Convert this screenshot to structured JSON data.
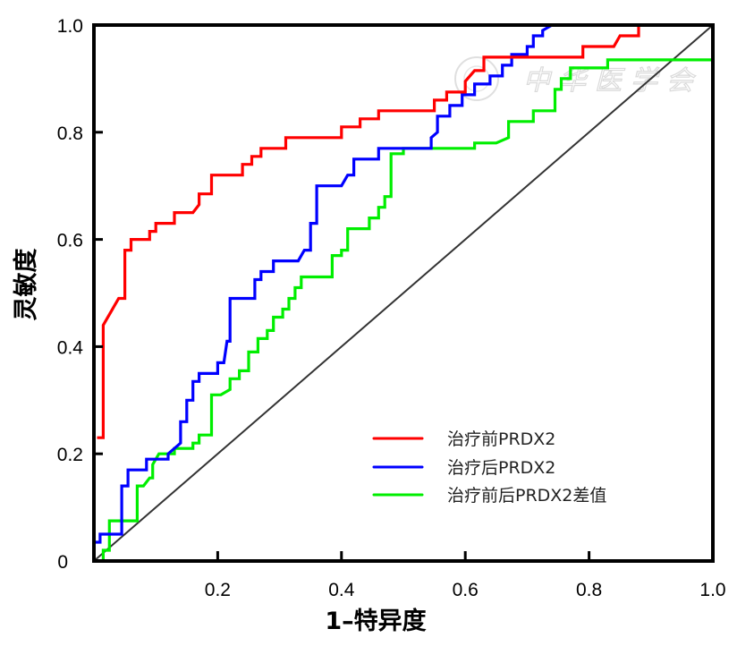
{
  "chart_data": {
    "type": "line",
    "title": "",
    "xlabel": "1–特异度",
    "ylabel": "灵敏度",
    "xlim": [
      0,
      1.0
    ],
    "ylim": [
      0,
      1.0
    ],
    "x_ticks": [
      {
        "value": 0.2,
        "label": "0.2"
      },
      {
        "value": 0.4,
        "label": "0.4"
      },
      {
        "value": 0.6,
        "label": "0.6"
      },
      {
        "value": 0.8,
        "label": "0.8"
      },
      {
        "value": 1.0,
        "label": "1.0"
      }
    ],
    "y_ticks": [
      {
        "value": 0,
        "label": "0"
      },
      {
        "value": 0.2,
        "label": "0.2"
      },
      {
        "value": 0.4,
        "label": "0.4"
      },
      {
        "value": 0.6,
        "label": "0.6"
      },
      {
        "value": 0.8,
        "label": "0.8"
      },
      {
        "value": 1.0,
        "label": "1.0"
      }
    ],
    "grid": false,
    "legend_position": "bottom-right",
    "watermark": "中华医学会",
    "reference_line": {
      "name": "diagonal",
      "color": "#333333",
      "points": [
        [
          0,
          0
        ],
        [
          1.0,
          1.0
        ]
      ]
    },
    "series": [
      {
        "name": "治疗前PRDX2",
        "color": "#ff0000",
        "points": [
          [
            0.005,
            0.23
          ],
          [
            0.015,
            0.23
          ],
          [
            0.015,
            0.44
          ],
          [
            0.04,
            0.49
          ],
          [
            0.05,
            0.49
          ],
          [
            0.05,
            0.58
          ],
          [
            0.06,
            0.58
          ],
          [
            0.06,
            0.6
          ],
          [
            0.09,
            0.6
          ],
          [
            0.09,
            0.615
          ],
          [
            0.1,
            0.615
          ],
          [
            0.1,
            0.63
          ],
          [
            0.13,
            0.63
          ],
          [
            0.13,
            0.65
          ],
          [
            0.16,
            0.65
          ],
          [
            0.17,
            0.665
          ],
          [
            0.17,
            0.685
          ],
          [
            0.19,
            0.685
          ],
          [
            0.19,
            0.72
          ],
          [
            0.24,
            0.72
          ],
          [
            0.24,
            0.74
          ],
          [
            0.255,
            0.74
          ],
          [
            0.255,
            0.755
          ],
          [
            0.27,
            0.755
          ],
          [
            0.27,
            0.77
          ],
          [
            0.31,
            0.77
          ],
          [
            0.31,
            0.79
          ],
          [
            0.4,
            0.79
          ],
          [
            0.4,
            0.81
          ],
          [
            0.43,
            0.81
          ],
          [
            0.43,
            0.825
          ],
          [
            0.46,
            0.825
          ],
          [
            0.46,
            0.84
          ],
          [
            0.55,
            0.84
          ],
          [
            0.55,
            0.86
          ],
          [
            0.57,
            0.86
          ],
          [
            0.57,
            0.875
          ],
          [
            0.6,
            0.875
          ],
          [
            0.6,
            0.895
          ],
          [
            0.615,
            0.915
          ],
          [
            0.63,
            0.915
          ],
          [
            0.63,
            0.94
          ],
          [
            0.79,
            0.94
          ],
          [
            0.79,
            0.96
          ],
          [
            0.84,
            0.96
          ],
          [
            0.85,
            0.98
          ],
          [
            0.88,
            0.98
          ],
          [
            0.88,
            1.0
          ]
        ]
      },
      {
        "name": "治疗后PRDX2",
        "color": "#0000ff",
        "points": [
          [
            0.0,
            0.035
          ],
          [
            0.01,
            0.035
          ],
          [
            0.01,
            0.05
          ],
          [
            0.045,
            0.05
          ],
          [
            0.045,
            0.14
          ],
          [
            0.055,
            0.14
          ],
          [
            0.055,
            0.17
          ],
          [
            0.085,
            0.17
          ],
          [
            0.085,
            0.19
          ],
          [
            0.12,
            0.19
          ],
          [
            0.12,
            0.2
          ],
          [
            0.14,
            0.22
          ],
          [
            0.14,
            0.26
          ],
          [
            0.15,
            0.26
          ],
          [
            0.15,
            0.3
          ],
          [
            0.16,
            0.3
          ],
          [
            0.16,
            0.335
          ],
          [
            0.17,
            0.335
          ],
          [
            0.17,
            0.35
          ],
          [
            0.2,
            0.35
          ],
          [
            0.2,
            0.37
          ],
          [
            0.21,
            0.37
          ],
          [
            0.215,
            0.41
          ],
          [
            0.22,
            0.41
          ],
          [
            0.22,
            0.49
          ],
          [
            0.26,
            0.49
          ],
          [
            0.26,
            0.525
          ],
          [
            0.27,
            0.525
          ],
          [
            0.27,
            0.54
          ],
          [
            0.29,
            0.54
          ],
          [
            0.29,
            0.56
          ],
          [
            0.33,
            0.56
          ],
          [
            0.34,
            0.58
          ],
          [
            0.35,
            0.58
          ],
          [
            0.35,
            0.63
          ],
          [
            0.36,
            0.63
          ],
          [
            0.36,
            0.7
          ],
          [
            0.4,
            0.7
          ],
          [
            0.41,
            0.72
          ],
          [
            0.42,
            0.72
          ],
          [
            0.42,
            0.75
          ],
          [
            0.46,
            0.75
          ],
          [
            0.46,
            0.77
          ],
          [
            0.545,
            0.77
          ],
          [
            0.545,
            0.79
          ],
          [
            0.555,
            0.8
          ],
          [
            0.555,
            0.83
          ],
          [
            0.575,
            0.83
          ],
          [
            0.575,
            0.85
          ],
          [
            0.595,
            0.85
          ],
          [
            0.595,
            0.87
          ],
          [
            0.615,
            0.87
          ],
          [
            0.615,
            0.89
          ],
          [
            0.64,
            0.89
          ],
          [
            0.64,
            0.905
          ],
          [
            0.66,
            0.905
          ],
          [
            0.66,
            0.925
          ],
          [
            0.675,
            0.925
          ],
          [
            0.675,
            0.945
          ],
          [
            0.7,
            0.945
          ],
          [
            0.7,
            0.96
          ],
          [
            0.71,
            0.96
          ],
          [
            0.71,
            0.98
          ],
          [
            0.725,
            0.98
          ],
          [
            0.725,
            0.99
          ],
          [
            0.74,
            1.0
          ]
        ]
      },
      {
        "name": "治疗前后PRDX2差值",
        "color": "#00ee00",
        "points": [
          [
            0.015,
            0.0
          ],
          [
            0.015,
            0.02
          ],
          [
            0.025,
            0.02
          ],
          [
            0.025,
            0.075
          ],
          [
            0.07,
            0.075
          ],
          [
            0.07,
            0.14
          ],
          [
            0.08,
            0.14
          ],
          [
            0.09,
            0.155
          ],
          [
            0.095,
            0.155
          ],
          [
            0.095,
            0.18
          ],
          [
            0.105,
            0.2
          ],
          [
            0.13,
            0.2
          ],
          [
            0.13,
            0.21
          ],
          [
            0.16,
            0.21
          ],
          [
            0.16,
            0.22
          ],
          [
            0.17,
            0.22
          ],
          [
            0.17,
            0.235
          ],
          [
            0.19,
            0.235
          ],
          [
            0.19,
            0.31
          ],
          [
            0.205,
            0.31
          ],
          [
            0.22,
            0.32
          ],
          [
            0.22,
            0.34
          ],
          [
            0.235,
            0.34
          ],
          [
            0.235,
            0.355
          ],
          [
            0.25,
            0.355
          ],
          [
            0.25,
            0.39
          ],
          [
            0.265,
            0.39
          ],
          [
            0.265,
            0.415
          ],
          [
            0.28,
            0.415
          ],
          [
            0.28,
            0.43
          ],
          [
            0.29,
            0.43
          ],
          [
            0.29,
            0.455
          ],
          [
            0.305,
            0.455
          ],
          [
            0.305,
            0.47
          ],
          [
            0.315,
            0.47
          ],
          [
            0.315,
            0.49
          ],
          [
            0.325,
            0.49
          ],
          [
            0.325,
            0.51
          ],
          [
            0.335,
            0.51
          ],
          [
            0.335,
            0.53
          ],
          [
            0.385,
            0.53
          ],
          [
            0.385,
            0.57
          ],
          [
            0.4,
            0.57
          ],
          [
            0.4,
            0.58
          ],
          [
            0.41,
            0.58
          ],
          [
            0.41,
            0.62
          ],
          [
            0.445,
            0.62
          ],
          [
            0.445,
            0.64
          ],
          [
            0.46,
            0.64
          ],
          [
            0.46,
            0.66
          ],
          [
            0.47,
            0.66
          ],
          [
            0.47,
            0.68
          ],
          [
            0.48,
            0.68
          ],
          [
            0.48,
            0.76
          ],
          [
            0.5,
            0.76
          ],
          [
            0.5,
            0.77
          ],
          [
            0.615,
            0.77
          ],
          [
            0.615,
            0.78
          ],
          [
            0.65,
            0.78
          ],
          [
            0.67,
            0.79
          ],
          [
            0.67,
            0.82
          ],
          [
            0.71,
            0.82
          ],
          [
            0.71,
            0.84
          ],
          [
            0.745,
            0.84
          ],
          [
            0.745,
            0.88
          ],
          [
            0.755,
            0.88
          ],
          [
            0.755,
            0.9
          ],
          [
            0.77,
            0.9
          ],
          [
            0.77,
            0.92
          ],
          [
            0.83,
            0.92
          ],
          [
            0.83,
            0.935
          ],
          [
            1.0,
            0.935
          ]
        ]
      }
    ]
  }
}
